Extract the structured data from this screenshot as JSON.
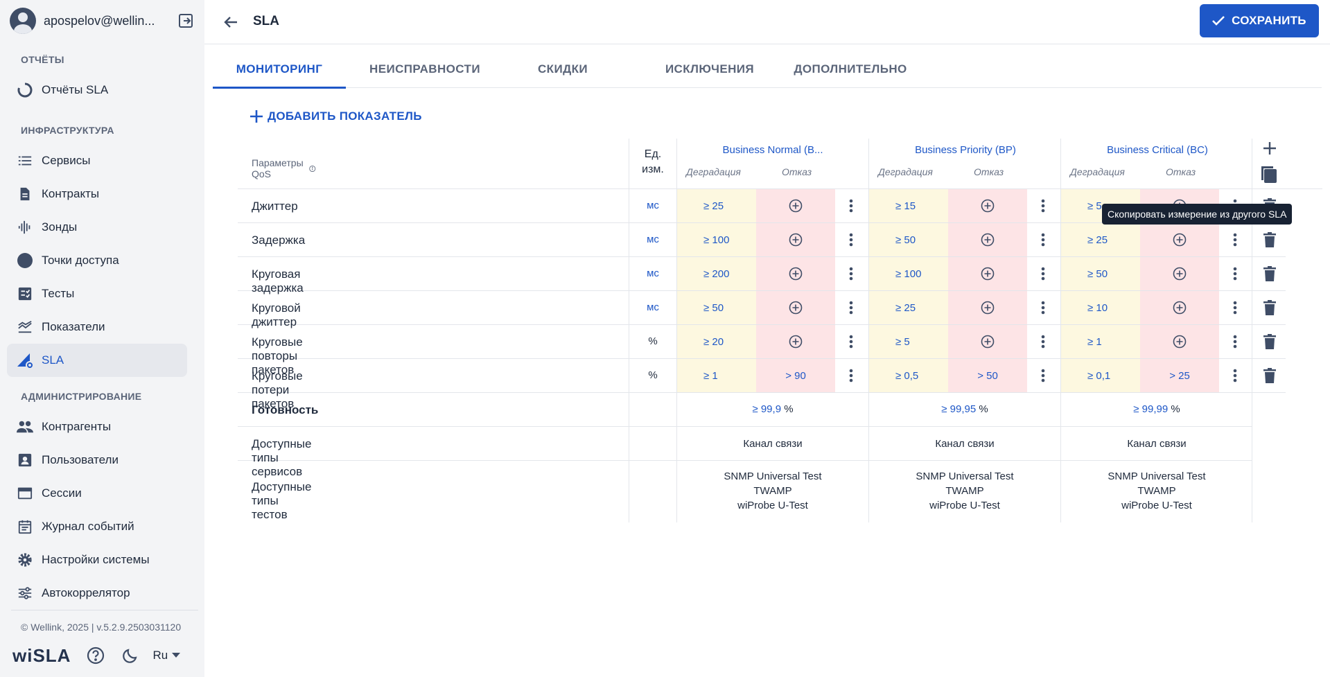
{
  "user": {
    "name": "apospelov@wellin..."
  },
  "sidebar": {
    "sections": [
      {
        "title": "ОТЧЁТЫ"
      },
      {
        "title": "ИНФРАСТРУКТУРА"
      },
      {
        "title": "АДМИНИСТРИРОВАНИЕ"
      }
    ],
    "items": [
      {
        "label": "Отчёты SLA",
        "icon": "sla-reports-icon"
      },
      {
        "label": "Сервисы",
        "icon": "list-icon"
      },
      {
        "label": "Контракты",
        "icon": "document-icon"
      },
      {
        "label": "Зонды",
        "icon": "probe-icon"
      },
      {
        "label": "Точки доступа",
        "icon": "access-point-icon"
      },
      {
        "label": "Тесты",
        "icon": "tests-icon"
      },
      {
        "label": "Показатели",
        "icon": "indicators-icon"
      },
      {
        "label": "SLA",
        "icon": "sla-icon",
        "active": true
      },
      {
        "label": "Контрагенты",
        "icon": "people-icon"
      },
      {
        "label": "Пользователи",
        "icon": "user-card-icon"
      },
      {
        "label": "Сессии",
        "icon": "window-icon"
      },
      {
        "label": "Журнал событий",
        "icon": "calendar-icon"
      },
      {
        "label": "Настройки системы",
        "icon": "gear-icon"
      },
      {
        "label": "Автокоррелятор",
        "icon": "sliders-icon"
      }
    ],
    "copyright": "© Wellink, 2025 | v.5.2.9.2503031120",
    "logo": "wiSLA",
    "language": "Ru"
  },
  "header": {
    "title": "SLA",
    "save_label": "СОХРАНИТЬ"
  },
  "tabs": [
    {
      "label": "МОНИТОРИНГ",
      "active": true
    },
    {
      "label": "НЕИСПРАВНОСТИ"
    },
    {
      "label": "СКИДКИ"
    },
    {
      "label": "ИСКЛЮЧЕНИЯ"
    },
    {
      "label": "ДОПОЛНИТЕЛЬНО"
    }
  ],
  "add_indicator_label": "ДОБАВИТЬ ПОКАЗАТЕЛЬ",
  "table": {
    "qos_header": "Параметры QoS",
    "unit_header_line1": "Ед.",
    "unit_header_line2": "изм.",
    "degradation_label": "Деградация",
    "failure_label": "Отказ",
    "profiles": [
      {
        "name": "Business Normal (B..."
      },
      {
        "name": "Business Priority (BP)"
      },
      {
        "name": "Business Critical (BC)"
      }
    ],
    "rows": [
      {
        "name": "Джиттер",
        "unit": "мс",
        "cells": [
          {
            "deg": "≥ 25",
            "fail": ""
          },
          {
            "deg": "≥ 15",
            "fail": ""
          },
          {
            "deg": "≥ 5",
            "fail": ""
          }
        ]
      },
      {
        "name": "Задержка",
        "unit": "мс",
        "cells": [
          {
            "deg": "≥ 100",
            "fail": ""
          },
          {
            "deg": "≥ 50",
            "fail": ""
          },
          {
            "deg": "≥ 25",
            "fail": ""
          }
        ]
      },
      {
        "name": "Круговая задержка",
        "unit": "мс",
        "cells": [
          {
            "deg": "≥ 200",
            "fail": ""
          },
          {
            "deg": "≥ 100",
            "fail": ""
          },
          {
            "deg": "≥ 50",
            "fail": ""
          }
        ]
      },
      {
        "name": "Круговой джиттер",
        "unit": "мс",
        "cells": [
          {
            "deg": "≥ 50",
            "fail": ""
          },
          {
            "deg": "≥ 25",
            "fail": ""
          },
          {
            "deg": "≥ 10",
            "fail": ""
          }
        ]
      },
      {
        "name": "Круговые повторы пакетов",
        "unit": "%",
        "cells": [
          {
            "deg": "≥ 20",
            "fail": ""
          },
          {
            "deg": "≥ 5",
            "fail": ""
          },
          {
            "deg": "≥ 1",
            "fail": ""
          }
        ]
      },
      {
        "name": "Круговые потери пакетов",
        "unit": "%",
        "cells": [
          {
            "deg": "≥ 1",
            "fail": "> 90"
          },
          {
            "deg": "≥ 0,5",
            "fail": "> 50"
          },
          {
            "deg": "≥ 0,1",
            "fail": "> 25"
          }
        ]
      }
    ],
    "availability": {
      "label": "Готовность",
      "values": [
        "≥ 99,9",
        "≥ 99,95",
        "≥ 99,99"
      ],
      "unit": "%"
    },
    "service_types": {
      "label": "Доступные типы сервисов",
      "values": [
        "Канал связи",
        "Канал связи",
        "Канал связи"
      ]
    },
    "test_types": {
      "label": "Доступные типы тестов",
      "values": [
        [
          "SNMP Universal Test",
          "TWAMP",
          "wiProbe U-Test"
        ],
        [
          "SNMP Universal Test",
          "TWAMP",
          "wiProbe U-Test"
        ],
        [
          "SNMP Universal Test",
          "TWAMP",
          "wiProbe U-Test"
        ]
      ]
    }
  },
  "tooltip": "Скопировать измерение из другого SLA",
  "colors": {
    "accent": "#1e57c7",
    "degradation_bg": "#fdf8e0",
    "failure_bg": "#fde4e6"
  }
}
